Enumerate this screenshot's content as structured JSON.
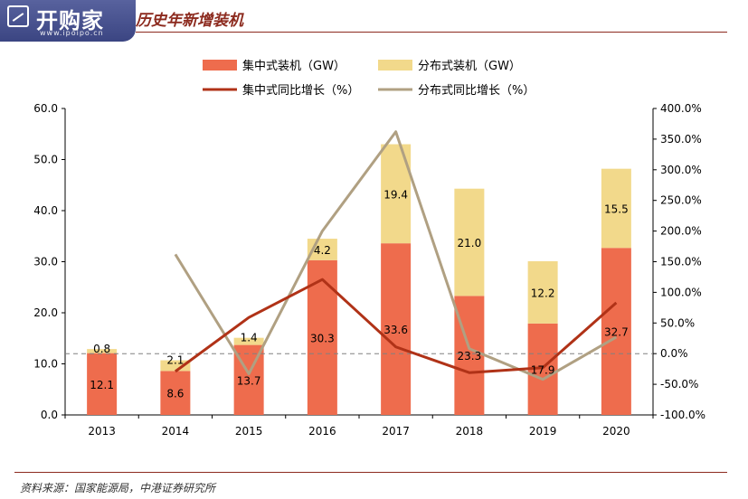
{
  "header": {
    "logo_name": "开购家",
    "logo_url": "www.ipoipo.cn",
    "title": "历史年新增装机"
  },
  "footer": {
    "source": "资料来源：国家能源局，中港证券研究所"
  },
  "colors": {
    "centralized_bar": "#ee6c4d",
    "distributed_bar": "#f2d98b",
    "centralized_line": "#b03217",
    "distributed_line": "#b0a082",
    "axis": "#000000",
    "zero_line": "#808080",
    "brand": "#4a5490",
    "title": "#8c2a1e"
  },
  "chart_data": {
    "type": "bar",
    "stacked": true,
    "categories": [
      "2013",
      "2014",
      "2015",
      "2016",
      "2017",
      "2018",
      "2019",
      "2020"
    ],
    "series": [
      {
        "name": "集中式装机（GW）",
        "kind": "bar",
        "axis": "left",
        "values": [
          12.1,
          8.6,
          13.7,
          30.3,
          33.6,
          23.3,
          17.9,
          32.7
        ],
        "labels": [
          "12.1",
          "8.6",
          "13.7",
          "30.3",
          "33.6",
          "23.3",
          "17.9",
          "32.7"
        ]
      },
      {
        "name": "分布式装机（GW）",
        "kind": "bar",
        "axis": "left",
        "values": [
          0.8,
          2.1,
          1.4,
          4.2,
          19.4,
          21.0,
          12.2,
          15.5
        ],
        "labels": [
          "0.8",
          "2.1",
          "1.4",
          "4.2",
          "19.4",
          "21.0",
          "12.2",
          "15.5"
        ]
      },
      {
        "name": "集中式同比增长（%）",
        "kind": "line",
        "axis": "right",
        "values": [
          null,
          -29,
          59,
          121,
          11,
          -31,
          -23,
          83
        ]
      },
      {
        "name": "分布式同比增长（%）",
        "kind": "line",
        "axis": "right",
        "values": [
          null,
          162,
          -33,
          200,
          362,
          8,
          -42,
          27
        ]
      }
    ],
    "y_left": {
      "range": [
        0,
        60
      ],
      "ticks": [
        0,
        10,
        20,
        30,
        40,
        50,
        60
      ],
      "tick_labels": [
        "0.0",
        "10.0",
        "20.0",
        "30.0",
        "40.0",
        "50.0",
        "60.0"
      ]
    },
    "y_right": {
      "range": [
        -100,
        400
      ],
      "ticks": [
        -100,
        -50,
        0,
        50,
        100,
        150,
        200,
        250,
        300,
        350,
        400
      ],
      "tick_labels": [
        "-100.0%",
        "-50.0%",
        "0.0%",
        "50.0%",
        "100.0%",
        "150.0%",
        "200.0%",
        "250.0%",
        "300.0%",
        "350.0%",
        "400.0%"
      ]
    },
    "reference_line": {
      "axis": "right",
      "value": 0,
      "style": "dashed"
    },
    "legend": {
      "placement": "top",
      "items": [
        "集中式装机（GW）",
        "分布式装机（GW）",
        "集中式同比增长（%）",
        "分布式同比增长（%）"
      ]
    },
    "grid": false
  }
}
